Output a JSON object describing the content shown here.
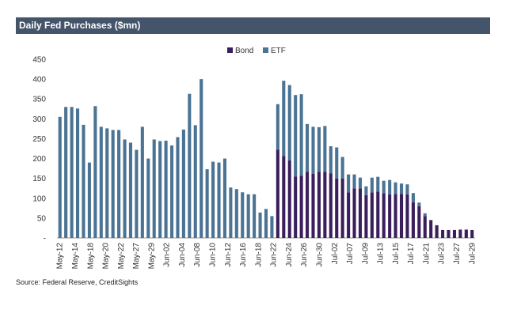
{
  "title": "Daily Fed Purchases ($mn)",
  "source": "Source: Federal Reserve, CreditSights",
  "colors": {
    "bond": "#3b1f5c",
    "etf": "#4a7394",
    "header": "#44546a"
  },
  "chart_data": {
    "type": "bar",
    "stacked": true,
    "ylim": [
      0,
      450
    ],
    "yticks": [
      0,
      50,
      100,
      150,
      200,
      250,
      300,
      350,
      400,
      450
    ],
    "legend": {
      "placement": "top-center",
      "entries": [
        "Bond",
        "ETF"
      ]
    },
    "xtick_labels": [
      "May-12",
      "May-14",
      "May-18",
      "May-20",
      "May-22",
      "May-27",
      "May-29",
      "Jun-02",
      "Jun-04",
      "Jun-08",
      "Jun-10",
      "Jun-12",
      "Jun-16",
      "Jun-18",
      "Jun-22",
      "Jun-24",
      "Jun-26",
      "Jun-30",
      "Jul-02",
      "Jul-07",
      "Jul-09",
      "Jul-13",
      "Jul-15",
      "Jul-17",
      "Jul-21",
      "Jul-23",
      "Jul-27",
      "Jul-29"
    ],
    "series": [
      {
        "name": "Bond",
        "values": [
          0,
          0,
          0,
          0,
          0,
          0,
          0,
          0,
          0,
          0,
          0,
          0,
          0,
          0,
          0,
          0,
          0,
          0,
          0,
          0,
          0,
          0,
          0,
          0,
          0,
          0,
          0,
          0,
          0,
          0,
          0,
          0,
          0,
          0,
          0,
          0,
          0,
          222,
          206,
          195,
          155,
          157,
          167,
          162,
          167,
          167,
          163,
          150,
          150,
          115,
          125,
          125,
          108,
          115,
          117,
          113,
          110,
          111,
          111,
          110,
          90,
          80,
          55,
          45,
          32,
          20,
          20,
          20,
          21,
          21,
          20
        ]
      },
      {
        "name": "ETF",
        "values": [
          305,
          330,
          330,
          326,
          285,
          190,
          332,
          280,
          276,
          272,
          272,
          248,
          240,
          222,
          280,
          200,
          248,
          244,
          245,
          233,
          254,
          273,
          363,
          284,
          400,
          173,
          192,
          190,
          200,
          127,
          123,
          115,
          110,
          110,
          64,
          73,
          55,
          115,
          190,
          190,
          205,
          205,
          120,
          118,
          112,
          115,
          68,
          78,
          54,
          45,
          35,
          27,
          22,
          37,
          37,
          31,
          36,
          29,
          26,
          25,
          23,
          9,
          7,
          0,
          0,
          0,
          0,
          0,
          0,
          0,
          0
        ]
      }
    ]
  }
}
